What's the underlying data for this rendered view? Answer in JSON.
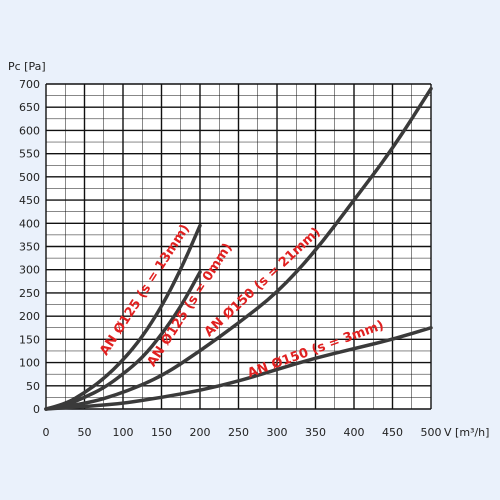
{
  "chart_data": {
    "type": "line",
    "xlabel": "V [m³/h]",
    "ylabel": "Pc [Pa]",
    "xlim": [
      0,
      500
    ],
    "ylim": [
      0,
      700
    ],
    "x_ticks": [
      0,
      50,
      100,
      150,
      200,
      250,
      300,
      350,
      400,
      450,
      500
    ],
    "y_ticks": [
      0,
      50,
      100,
      150,
      200,
      250,
      300,
      350,
      400,
      450,
      500,
      550,
      600,
      650,
      700
    ],
    "x_minor_step": 25,
    "y_minor_step": 25,
    "grid": true,
    "series": [
      {
        "name": "AN Ø125 (s = 13mm)",
        "x": [
          0,
          25,
          50,
          75,
          100,
          125,
          150,
          175,
          200
        ],
        "y": [
          0,
          10,
          35,
          65,
          105,
          155,
          220,
          300,
          395
        ]
      },
      {
        "name": "AN Ø125 (s = 0mm)",
        "x": [
          0,
          25,
          50,
          75,
          100,
          125,
          150,
          175,
          200
        ],
        "y": [
          0,
          7,
          25,
          45,
          75,
          110,
          160,
          220,
          295
        ]
      },
      {
        "name": "AN Ø150 (s = 21mm)",
        "x": [
          0,
          50,
          100,
          150,
          200,
          250,
          300,
          350,
          400,
          450,
          500
        ],
        "y": [
          0,
          10,
          35,
          70,
          125,
          185,
          250,
          340,
          450,
          560,
          690
        ]
      },
      {
        "name": "AN Ø150 (s = 3mm)",
        "x": [
          0,
          50,
          100,
          150,
          200,
          250,
          300,
          350,
          400,
          450,
          500
        ],
        "y": [
          0,
          5,
          12,
          25,
          40,
          60,
          85,
          110,
          130,
          150,
          175
        ]
      }
    ]
  },
  "colors": {
    "background": "#eaf1fb",
    "plot_area": "#ffffff",
    "curve": "#3a3a3a",
    "grid": "#111111",
    "label": "#e02020"
  }
}
